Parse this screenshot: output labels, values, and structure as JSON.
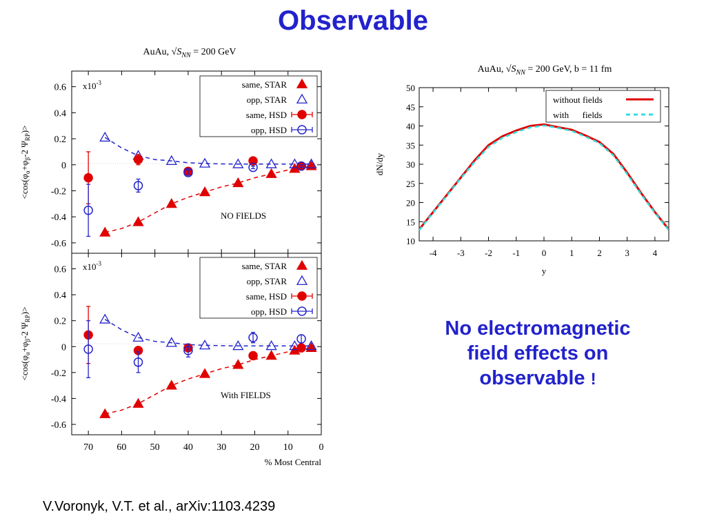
{
  "slide": {
    "title": "Observable",
    "message_line1": "No electromagnetic",
    "message_line2": "field effects on",
    "message_line3": "observable",
    "message_mark": "!",
    "citation": "V.Voronyk, V.T. et  al., arXiv:1103.4239"
  },
  "colors": {
    "title": "#2222cc",
    "star_same": "#e00000",
    "star_opp": "#2222cc",
    "dndy_without": "#e00000",
    "dndy_with": "#33dddd"
  },
  "chart_data": [
    {
      "id": "panel_top",
      "type": "scatter",
      "title": "AuAu,  √S_NN = 200 GeV",
      "title_parts": {
        "prefix": "AuAu,  √",
        "S": "S",
        "sub": "NN",
        "suffix": " = 200 GeV"
      },
      "ylabel": "<cos(φα+φβ-2 ΨRP)>",
      "ylabel_parts": {
        "a": "<cos(φ",
        "sa": "α",
        "b": "+φ",
        "sb": "β",
        "c": "-2 Ψ",
        "sc": "RP",
        "d": ")>"
      },
      "xlabel": "",
      "multiplier": "x10-3",
      "multiplier_parts": {
        "base": "x10",
        "exp": "-3"
      },
      "annotation": "NO FIELDS",
      "xlim": [
        75,
        0
      ],
      "ylim": [
        -0.68,
        0.72
      ],
      "yticks": [
        "0.6",
        "0.4",
        "0.2",
        "0",
        "-0.2",
        "-0.4",
        "-0.6"
      ],
      "legend": [
        "same, STAR",
        "opp, STAR",
        "same, HSD",
        "opp, HSD"
      ],
      "legend_position": "top-right",
      "series": [
        {
          "name": "same, STAR",
          "marker": "filled-triangle",
          "x": [
            65,
            55,
            45,
            35,
            25,
            15,
            8,
            3
          ],
          "y": [
            -0.52,
            -0.44,
            -0.3,
            -0.21,
            -0.14,
            -0.07,
            -0.03,
            -0.01
          ]
        },
        {
          "name": "opp, STAR",
          "marker": "open-triangle",
          "x": [
            65,
            55,
            45,
            35,
            25,
            15,
            8,
            3
          ],
          "y": [
            0.21,
            0.07,
            0.03,
            0.01,
            0.005,
            0.005,
            0.005,
            0.005
          ]
        },
        {
          "name": "same, HSD",
          "marker": "filled-circle",
          "x": [
            70,
            55,
            40,
            20.5,
            6
          ],
          "y": [
            -0.1,
            0.04,
            -0.05,
            0.03,
            -0.01
          ],
          "yerr": [
            0.2,
            0.04,
            0.02,
            0.01,
            0.01
          ]
        },
        {
          "name": "opp, HSD",
          "marker": "open-circle",
          "x": [
            70,
            55,
            40,
            20.5,
            6
          ],
          "y": [
            -0.35,
            -0.16,
            -0.06,
            -0.02,
            -0.01
          ],
          "yerr": [
            0.2,
            0.05,
            0.02,
            0.01,
            0.01
          ]
        }
      ],
      "fit_curves": [
        {
          "for": "same, STAR",
          "x": [
            65,
            60,
            55,
            50,
            45,
            40,
            35,
            30,
            25,
            20,
            15,
            10,
            5,
            2
          ],
          "y": [
            -0.52,
            -0.49,
            -0.44,
            -0.37,
            -0.3,
            -0.25,
            -0.21,
            -0.17,
            -0.14,
            -0.1,
            -0.07,
            -0.04,
            -0.02,
            -0.01
          ]
        },
        {
          "for": "opp, STAR",
          "x": [
            65,
            60,
            55,
            50,
            45,
            40,
            35,
            30,
            25,
            20,
            15,
            10,
            5,
            2
          ],
          "y": [
            0.21,
            0.13,
            0.07,
            0.04,
            0.03,
            0.015,
            0.01,
            0.007,
            0.005,
            0.005,
            0.005,
            0.005,
            0.005,
            0.005
          ]
        }
      ]
    },
    {
      "id": "panel_bottom",
      "type": "scatter",
      "title": "",
      "ylabel": "<cos(φα+φβ-2 ΨRP)>",
      "ylabel_parts": {
        "a": "<cos(φ",
        "sa": "α",
        "b": "+φ",
        "sb": "β",
        "c": "-2 Ψ",
        "sc": "RP",
        "d": ")>"
      },
      "xlabel": "% Most Central",
      "multiplier": "x10-3",
      "multiplier_parts": {
        "base": "x10",
        "exp": "-3"
      },
      "annotation": "With FIELDS",
      "xlim": [
        75,
        0
      ],
      "ylim": [
        -0.68,
        0.72
      ],
      "xticks": [
        "70",
        "60",
        "50",
        "40",
        "30",
        "20",
        "10",
        "0"
      ],
      "yticks": [
        "0.6",
        "0.4",
        "0.2",
        "0",
        "-0.2",
        "-0.4",
        "-0.6"
      ],
      "legend": [
        "same, STAR",
        "opp, STAR",
        "same, HSD",
        "opp, HSD"
      ],
      "legend_position": "top-right",
      "series": [
        {
          "name": "same, STAR",
          "marker": "filled-triangle",
          "x": [
            65,
            55,
            45,
            35,
            25,
            15,
            8,
            3
          ],
          "y": [
            -0.52,
            -0.44,
            -0.3,
            -0.21,
            -0.14,
            -0.07,
            -0.03,
            -0.01
          ]
        },
        {
          "name": "opp, STAR",
          "marker": "open-triangle",
          "x": [
            65,
            55,
            45,
            35,
            25,
            15,
            8,
            3
          ],
          "y": [
            0.21,
            0.07,
            0.03,
            0.01,
            0.005,
            0.005,
            0.005,
            0.005
          ]
        },
        {
          "name": "same, HSD",
          "marker": "filled-circle",
          "x": [
            70,
            55,
            40,
            20.5,
            6
          ],
          "y": [
            0.09,
            -0.03,
            -0.01,
            -0.07,
            -0.01
          ],
          "yerr": [
            0.22,
            0.03,
            0.02,
            0.02,
            0.01
          ]
        },
        {
          "name": "opp, HSD",
          "marker": "open-circle",
          "x": [
            70,
            55,
            40,
            20.5,
            6
          ],
          "y": [
            -0.02,
            -0.12,
            -0.03,
            0.07,
            0.06
          ],
          "yerr": [
            0.22,
            0.08,
            0.05,
            0.04,
            0.03
          ]
        }
      ],
      "fit_curves": [
        {
          "for": "same, STAR",
          "x": [
            65,
            60,
            55,
            50,
            45,
            40,
            35,
            30,
            25,
            20,
            15,
            10,
            5,
            2
          ],
          "y": [
            -0.52,
            -0.49,
            -0.44,
            -0.37,
            -0.3,
            -0.25,
            -0.21,
            -0.17,
            -0.14,
            -0.1,
            -0.07,
            -0.04,
            -0.02,
            -0.01
          ]
        },
        {
          "for": "opp, STAR",
          "x": [
            65,
            60,
            55,
            50,
            45,
            40,
            35,
            30,
            25,
            20,
            15,
            10,
            5,
            2
          ],
          "y": [
            0.21,
            0.13,
            0.07,
            0.04,
            0.03,
            0.015,
            0.01,
            0.007,
            0.005,
            0.005,
            0.005,
            0.005,
            0.005,
            0.005
          ]
        }
      ]
    },
    {
      "id": "dndy",
      "type": "line",
      "title": "AuAu,  √S_NN = 200 GeV, b = 11 fm",
      "title_parts": {
        "prefix": "AuAu,  √",
        "S": "S",
        "sub": "NN",
        "suffix": " = 200 GeV, b = 11 fm"
      },
      "xlabel": "y",
      "ylabel": "dN/dy",
      "xlim": [
        -4.5,
        4.5
      ],
      "ylim": [
        10,
        50
      ],
      "xticks": [
        "-4",
        "-3",
        "-2",
        "-1",
        "0",
        "1",
        "2",
        "3",
        "4"
      ],
      "yticks": [
        "50",
        "45",
        "40",
        "35",
        "30",
        "25",
        "20",
        "15",
        "10"
      ],
      "legend": [
        "without fields",
        "with      fields"
      ],
      "legend_position": "top-right",
      "series": [
        {
          "name": "without fields",
          "style": "solid",
          "x": [
            -4.5,
            -4,
            -3.5,
            -3,
            -2.5,
            -2,
            -1.5,
            -1,
            -0.5,
            0,
            0.5,
            1,
            1.5,
            2,
            2.5,
            3,
            3.5,
            4,
            4.5
          ],
          "y": [
            13,
            17.5,
            22,
            26.5,
            31,
            35,
            37.3,
            38.8,
            40,
            40.4,
            39.7,
            39,
            37.5,
            35.8,
            32.7,
            27.8,
            22.5,
            17.5,
            13
          ]
        },
        {
          "name": "with      fields",
          "style": "dashed",
          "x": [
            -4.5,
            -4,
            -3.5,
            -3,
            -2.5,
            -2,
            -1.5,
            -1,
            -0.5,
            0,
            0.5,
            1,
            1.5,
            2,
            2.5,
            3,
            3.5,
            4,
            4.5
          ],
          "y": [
            12.8,
            17.3,
            21.8,
            26.3,
            30.6,
            34.5,
            36.9,
            38.4,
            39.6,
            40.1,
            39.5,
            38.7,
            37.2,
            35.5,
            32.3,
            27.4,
            22.2,
            17.3,
            12.8
          ]
        }
      ]
    }
  ]
}
